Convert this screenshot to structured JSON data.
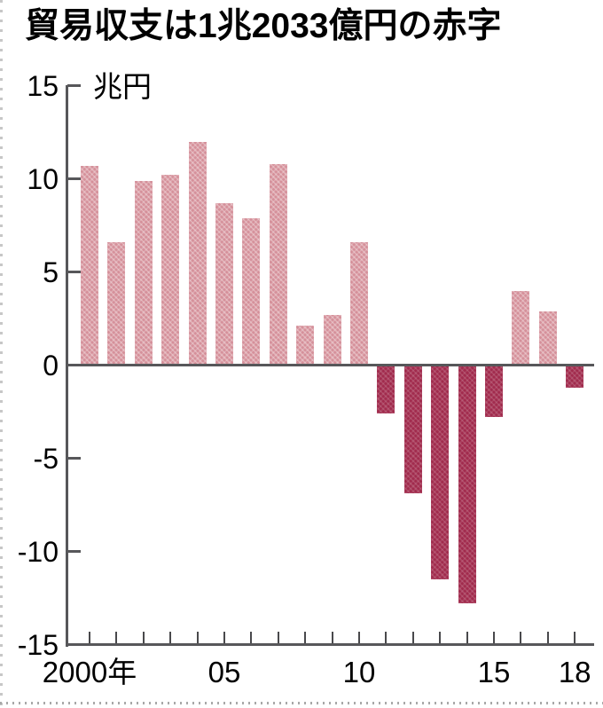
{
  "page": {
    "title": "貿易収支は1兆2033億円の赤字"
  },
  "chart_data": {
    "type": "bar",
    "title": "貿易収支は1兆2033億円の赤字",
    "unit_label": "兆円",
    "xlabel": "",
    "ylabel": "兆円",
    "ylim": [
      -15,
      15
    ],
    "y_ticks": [
      15,
      10,
      5,
      0,
      -5,
      -10,
      -15
    ],
    "categories": [
      2000,
      2001,
      2002,
      2003,
      2004,
      2005,
      2006,
      2007,
      2008,
      2009,
      2010,
      2011,
      2012,
      2013,
      2014,
      2015,
      2016,
      2017,
      2018
    ],
    "values": [
      10.7,
      6.6,
      9.9,
      10.2,
      12.0,
      8.7,
      7.9,
      10.8,
      2.1,
      2.7,
      6.6,
      -2.6,
      -6.9,
      -11.5,
      -12.8,
      -2.8,
      4.0,
      2.9,
      -1.2
    ],
    "x_tick_labels": [
      {
        "year": 2000,
        "label": "2000年"
      },
      {
        "year": 2005,
        "label": "05"
      },
      {
        "year": 2010,
        "label": "10"
      },
      {
        "year": 2015,
        "label": "15"
      },
      {
        "year": 2018,
        "label": "18"
      }
    ],
    "legend": "none",
    "grid": "off",
    "colors": {
      "positive_bar": "#d5909a",
      "negative_bar": "#a12b4d",
      "axis": "#57575a",
      "text": "#000000"
    }
  }
}
